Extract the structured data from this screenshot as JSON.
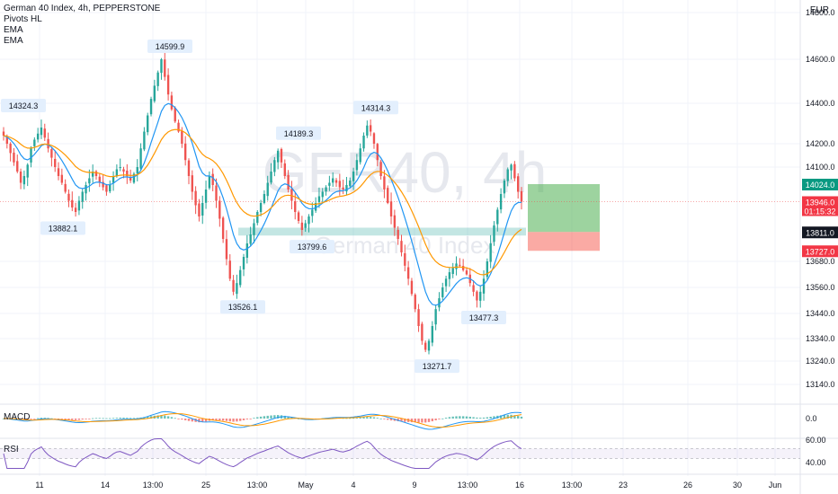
{
  "header": {
    "symbol_line": "German 40 Index, 4h, PEPPERSTONE",
    "indicators": [
      "Pivots HL",
      "EMA",
      "EMA"
    ],
    "currency": "EUR"
  },
  "watermark": {
    "ticker": "GER40, 4h",
    "name": "German 40 Index"
  },
  "colors": {
    "up": "#26a69a",
    "down": "#ef5350",
    "ema_fast": "#2196f3",
    "ema_slow": "#ff9800",
    "rsi": "#7e57c2",
    "target_zone": "#4caf50",
    "stop_zone": "#f44336",
    "consolidation": "#26a69a"
  },
  "chart_data": [
    {
      "type": "candlestick",
      "title": "German 40 Index, 4h, PEPPERSTONE",
      "ylim": [
        13080,
        14800
      ],
      "y_ticks": [
        13140.0,
        13240.0,
        13340.0,
        13440.0,
        13560.0,
        13680.0,
        14100.0,
        14200.0,
        14400.0,
        14600.0,
        14800.0
      ],
      "x_tick_labels": [
        "11",
        "14",
        "13:00",
        "25",
        "13:00",
        "May",
        "4",
        "9",
        "13:00",
        "16",
        "13:00",
        "23",
        "26",
        "30",
        "Jun"
      ],
      "pivots": [
        {
          "label": "14324.3",
          "value": 14324.3,
          "kind": "high"
        },
        {
          "label": "13882.1",
          "value": 13882.1,
          "kind": "low"
        },
        {
          "label": "14599.9",
          "value": 14599.9,
          "kind": "high"
        },
        {
          "label": "13526.1",
          "value": 13526.1,
          "kind": "low"
        },
        {
          "label": "14189.3",
          "value": 14189.3,
          "kind": "high"
        },
        {
          "label": "13799.6",
          "value": 13799.6,
          "kind": "low"
        },
        {
          "label": "14314.3",
          "value": 14314.3,
          "kind": "high"
        },
        {
          "label": "13271.7",
          "value": 13271.7,
          "kind": "low"
        },
        {
          "label": "13477.3",
          "value": 13477.3,
          "kind": "low"
        }
      ],
      "price_tags": [
        {
          "label": "14024.0",
          "value": 14024.0,
          "kind": "target"
        },
        {
          "label": "13946.0",
          "sub": "01:15:32",
          "value": 13946.0,
          "kind": "last"
        },
        {
          "label": "13811.0",
          "value": 13811.0,
          "kind": "entry"
        },
        {
          "label": "13727.0",
          "value": 13727.0,
          "kind": "stop"
        }
      ],
      "long_position": {
        "target": 14024.0,
        "entry": 13811.0,
        "stop": 13727.0
      },
      "consolidation_zone": [
        13795,
        13830
      ],
      "closes": [
        14240,
        14200,
        14160,
        14120,
        14080,
        14030,
        14060,
        14110,
        14180,
        14220,
        14250,
        14280,
        14230,
        14180,
        14140,
        14100,
        14060,
        14030,
        13990,
        13950,
        13920,
        13900,
        13950,
        13990,
        14020,
        14050,
        14080,
        14060,
        14030,
        14010,
        13990,
        14020,
        14060,
        14090,
        14100,
        14080,
        14060,
        14040,
        14070,
        14100,
        14180,
        14260,
        14340,
        14420,
        14480,
        14540,
        14600,
        14520,
        14440,
        14370,
        14310,
        14260,
        14200,
        14130,
        14060,
        13990,
        13930,
        13880,
        13940,
        14000,
        14060,
        14020,
        13950,
        13870,
        13780,
        13690,
        13600,
        13540,
        13580,
        13640,
        13700,
        13760,
        13800,
        13850,
        13900,
        13940,
        13980,
        14030,
        14080,
        14130,
        14170,
        14120,
        14060,
        14000,
        13950,
        13900,
        13860,
        13820,
        13850,
        13880,
        13910,
        13940,
        13970,
        13990,
        14010,
        14030,
        14050,
        14030,
        14010,
        14000,
        14020,
        14040,
        14080,
        14130,
        14180,
        14240,
        14290,
        14260,
        14200,
        14130,
        14060,
        14000,
        13940,
        13880,
        13830,
        13780,
        13720,
        13660,
        13600,
        13530,
        13460,
        13390,
        13330,
        13290,
        13330,
        13390,
        13460,
        13510,
        13560,
        13600,
        13630,
        13650,
        13670,
        13660,
        13640,
        13620,
        13580,
        13540,
        13500,
        13540,
        13600,
        13680,
        13760,
        13840,
        13910,
        13980,
        14040,
        14090,
        14110,
        14050,
        13990,
        13946
      ]
    },
    {
      "type": "line",
      "title": "MACD",
      "y_ticks": [
        "0.0"
      ]
    },
    {
      "type": "line",
      "title": "RSI",
      "y_ticks": [
        "60.00",
        "40.00"
      ]
    }
  ]
}
